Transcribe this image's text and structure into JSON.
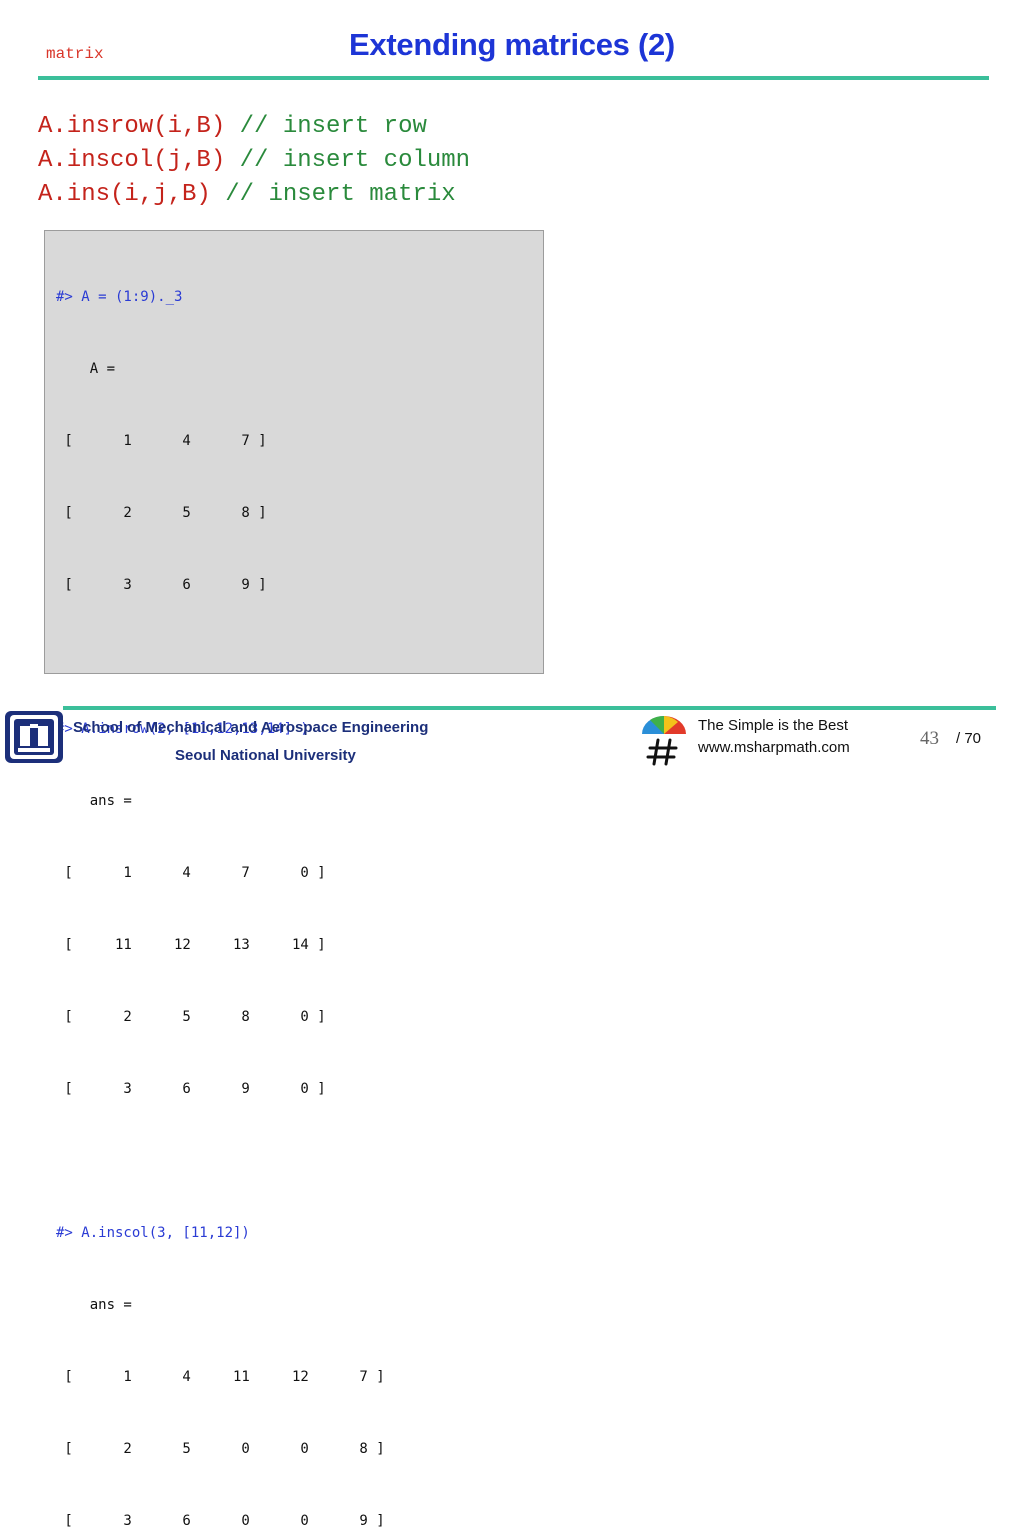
{
  "header": {
    "section_tag": "matrix",
    "title": "Extending matrices (2)"
  },
  "api": [
    {
      "code": "A.insrow(i,B)",
      "comment": "// insert row"
    },
    {
      "code": "A.inscol(j,B)",
      "comment": "// insert column"
    },
    {
      "code": "A.ins(i,j,B)",
      "comment": "// insert matrix"
    }
  ],
  "console": {
    "lines": [
      {
        "kind": "cmd",
        "text": "#> A = (1:9)._3"
      },
      {
        "kind": "out",
        "text": "    A ="
      },
      {
        "kind": "out",
        "text": " [      1      4      7 ]"
      },
      {
        "kind": "out",
        "text": " [      2      5      8 ]"
      },
      {
        "kind": "out",
        "text": " [      3      6      9 ]"
      },
      {
        "kind": "out",
        "text": ""
      },
      {
        "kind": "cmd",
        "text": "#> A.insrow(2, [11,12,13,14] )"
      },
      {
        "kind": "out",
        "text": "    ans ="
      },
      {
        "kind": "out",
        "text": " [      1      4      7      0 ]"
      },
      {
        "kind": "out",
        "text": " [     11     12     13     14 ]"
      },
      {
        "kind": "out",
        "text": " [      2      5      8      0 ]"
      },
      {
        "kind": "out",
        "text": " [      3      6      9      0 ]"
      },
      {
        "kind": "out",
        "text": ""
      },
      {
        "kind": "cmd",
        "text": "#> A.inscol(3, [11,12])"
      },
      {
        "kind": "out",
        "text": "    ans ="
      },
      {
        "kind": "out",
        "text": " [      1      4     11     12      7 ]"
      },
      {
        "kind": "out",
        "text": " [      2      5      0      0      8 ]"
      },
      {
        "kind": "out",
        "text": " [      3      6      0      0      9 ]"
      }
    ]
  },
  "footer": {
    "logo_icon": "university-emblem-icon",
    "school": "School of Mechanical and Aerospace Engineering",
    "university": "Seoul National University",
    "brand_icon": "umbrella-sharp-icon",
    "motto": "The Simple is the Best",
    "website": "www.msharpmath.com",
    "page_number": "43",
    "page_total": "/ 70"
  },
  "colors": {
    "accent_rule": "#3bbf9a",
    "title": "#1d35d6",
    "code": "#c4231b",
    "comment": "#2a8a3c",
    "console_cmd": "#2a3bd4",
    "console_bg": "#d9d9d9"
  }
}
